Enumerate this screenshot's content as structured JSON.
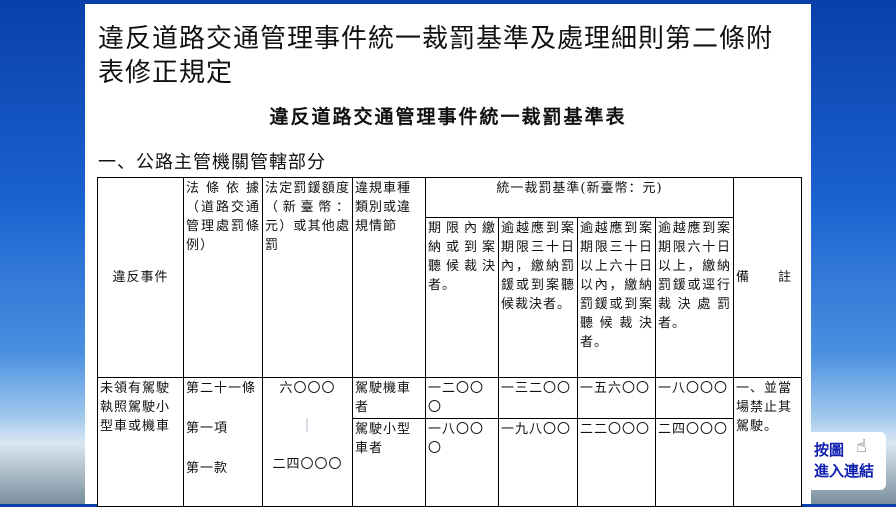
{
  "title": "違反道路交通管理事件統一裁罰基準及處理細則第二條附表修正規定",
  "subtitle": "違反道路交通管理事件統一裁罰基準表",
  "section": "一、公路主管機關管轄部分",
  "table": {
    "headers": {
      "event": "違反事件",
      "law": "法條依據（道路交通管理處罰條例）",
      "fine": "法定罰鍰額度（新臺幣：元）或其他處罰",
      "vehicle": "違規車種類別或違規情節",
      "standard": "統一裁罰基準(新臺幣：元)",
      "remark": "備　　註",
      "sub": [
        "期限內繳納或到案聽候裁決者。",
        "逾越應到案期限三十日內，繳納罰鍰或到案聽候裁決者。",
        "逾越應到案期限三十日以上六十日以內，繳納罰鍰或到案聽候裁決者。",
        "逾越應到案期限六十日以上，繳納罰鍰或逕行裁決處罰者。"
      ]
    },
    "row": {
      "event": "未領有駕駛執照駕駛小型車或機車",
      "law": [
        "第二十一條",
        "第一項",
        "第一款"
      ],
      "fine_min": "六〇〇〇",
      "fine_sep": "｜",
      "fine_max": "二四〇〇〇",
      "vehicles": [
        {
          "type": "駕駛機車者",
          "values": [
            "一二〇〇〇",
            "一三二〇〇",
            "一五六〇〇",
            "一八〇〇〇"
          ]
        },
        {
          "type": "駕駛小型車者",
          "values": [
            "一八〇〇〇",
            "一九八〇〇",
            "二二〇〇〇",
            "二四〇〇〇"
          ]
        }
      ],
      "remark": "一、並當場禁止其駕駛。"
    }
  },
  "link": {
    "line1": "按圖",
    "line2": "進入連結",
    "icon": "hand-pointer-icon"
  }
}
